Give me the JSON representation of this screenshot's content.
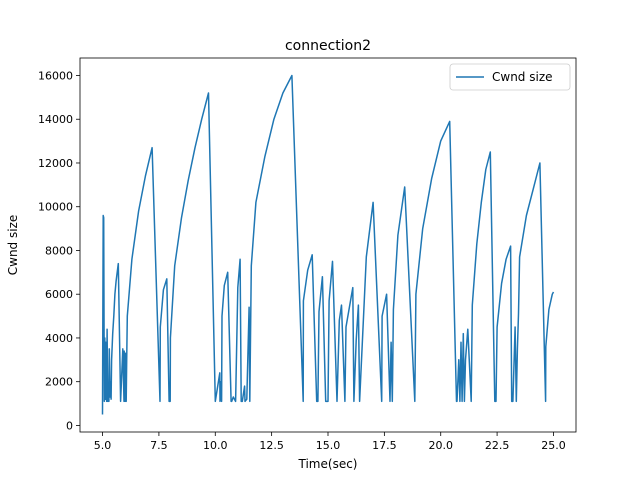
{
  "chart_data": {
    "type": "line",
    "title": "connection2",
    "xlabel": "Time(sec)",
    "ylabel": "Cwnd size",
    "xlim": [
      4.0,
      26.0
    ],
    "ylim": [
      -300,
      16800
    ],
    "xticks": [
      5.0,
      7.5,
      10.0,
      12.5,
      15.0,
      17.5,
      20.0,
      22.5,
      25.0
    ],
    "xtick_labels": [
      "5.0",
      "7.5",
      "10.0",
      "12.5",
      "15.0",
      "17.5",
      "20.0",
      "22.5",
      "25.0"
    ],
    "yticks": [
      0,
      2000,
      4000,
      6000,
      8000,
      10000,
      12000,
      14000,
      16000
    ],
    "ytick_labels": [
      "0",
      "2000",
      "4000",
      "6000",
      "8000",
      "10000",
      "12000",
      "14000",
      "16000"
    ],
    "legend_position": "top-right",
    "grid": false,
    "series": [
      {
        "name": "Cwnd size",
        "color": "#1f77b4",
        "x": [
          5.0,
          5.03,
          5.05,
          5.08,
          5.1,
          5.13,
          5.15,
          5.18,
          5.2,
          5.23,
          5.25,
          5.28,
          5.3,
          5.33,
          5.35,
          5.38,
          5.4,
          5.45,
          5.5,
          5.55,
          5.6,
          5.7,
          5.8,
          5.9,
          5.95,
          5.96,
          6.0,
          6.02,
          6.05,
          6.07,
          6.1,
          6.3,
          6.6,
          6.9,
          7.2,
          7.55,
          7.56,
          7.7,
          7.85,
          7.95,
          8.0,
          8.01,
          8.2,
          8.5,
          8.8,
          9.1,
          9.4,
          9.7,
          10.0,
          10.2,
          10.21,
          10.25,
          10.28,
          10.3,
          10.4,
          10.55,
          10.7,
          10.73,
          10.8,
          10.9,
          11.0,
          11.1,
          11.15,
          11.2,
          11.3,
          11.32,
          11.4,
          11.5,
          11.53,
          11.6,
          11.8,
          12.2,
          12.6,
          13.0,
          13.4,
          13.9,
          13.91,
          14.1,
          14.3,
          14.5,
          14.55,
          14.6,
          14.75,
          14.9,
          15.0,
          15.05,
          15.2,
          15.4,
          15.5,
          15.6,
          15.75,
          15.8,
          15.95,
          16.1,
          16.15,
          16.25,
          16.35,
          16.4,
          16.7,
          17.0,
          17.38,
          17.4,
          17.6,
          17.75,
          17.8,
          17.85,
          17.9,
          18.1,
          18.4,
          18.85,
          18.9,
          19.2,
          19.6,
          20.0,
          20.4,
          20.7,
          20.72,
          20.8,
          20.85,
          20.9,
          20.95,
          21.0,
          21.05,
          21.1,
          21.2,
          21.35,
          21.4,
          21.6,
          21.8,
          22.0,
          22.2,
          22.4,
          22.45,
          22.5,
          22.7,
          22.9,
          23.1,
          23.15,
          23.2,
          23.3,
          23.35,
          23.4,
          23.45,
          23.5,
          23.8,
          24.1,
          24.4,
          24.65,
          24.66,
          24.8,
          24.95,
          25.0
        ],
        "y": [
          500,
          9600,
          9500,
          1100,
          4000,
          1200,
          3800,
          1100,
          4400,
          1100,
          1500,
          1100,
          3500,
          1300,
          2000,
          1200,
          3000,
          4200,
          5000,
          6000,
          6600,
          7400,
          1100,
          3500,
          1100,
          3400,
          1100,
          3300,
          1100,
          3000,
          5000,
          7600,
          9800,
          11400,
          12700,
          1100,
          4500,
          6200,
          6700,
          1100,
          1100,
          4000,
          7300,
          9500,
          11200,
          12700,
          14000,
          15200,
          1100,
          2400,
          1100,
          2000,
          1100,
          5000,
          6400,
          7000,
          1100,
          1100,
          1300,
          1100,
          6300,
          7600,
          1100,
          1100,
          1800,
          1100,
          1200,
          5400,
          1100,
          7300,
          10200,
          12300,
          14000,
          15200,
          16000,
          1100,
          5700,
          7100,
          7800,
          1100,
          1100,
          5200,
          6800,
          1100,
          1100,
          5700,
          7500,
          1100,
          4800,
          5500,
          1100,
          4500,
          5400,
          6300,
          1100,
          3900,
          5500,
          1100,
          7700,
          10200,
          1100,
          5000,
          6000,
          1100,
          3800,
          1100,
          5300,
          8700,
          10900,
          1100,
          6000,
          9000,
          11300,
          13000,
          13900,
          1100,
          1100,
          3000,
          1100,
          3800,
          1100,
          4200,
          1100,
          3000,
          4400,
          1100,
          5500,
          8300,
          10200,
          11700,
          12500,
          1100,
          1100,
          4500,
          6500,
          7600,
          8200,
          1100,
          1100,
          4500,
          1100,
          3500,
          5100,
          7700,
          9600,
          10800,
          12000,
          1100,
          3600,
          5300,
          6000,
          6100
        ]
      }
    ]
  }
}
